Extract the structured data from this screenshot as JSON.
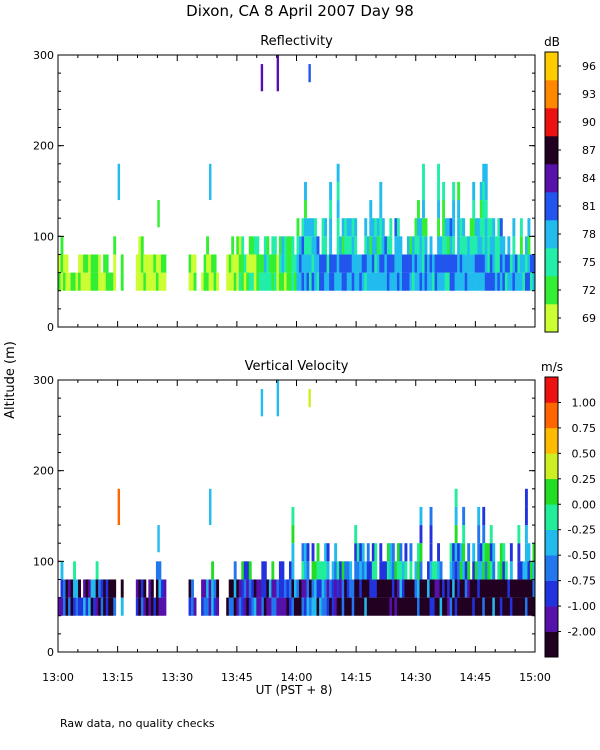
{
  "title": "Dixon, CA   8 April 2007   Day   98",
  "ylabel": "Altitude  (m)",
  "xlabel": "UT   (PST + 8)",
  "footnote": "Raw data, no quality checks",
  "colors": {
    "reflectivity": [
      "#ccff33",
      "#33ee33",
      "#22eeaa",
      "#22bbee",
      "#2255ee",
      "#5511aa",
      "#220022",
      "#ee1111",
      "#ff8800",
      "#ffcc00"
    ],
    "velocity": [
      "#220022",
      "#5511aa",
      "#2233dd",
      "#2277ee",
      "#22bbee",
      "#22ee99",
      "#22dd22",
      "#ccee22",
      "#ffbb00",
      "#ff6600",
      "#ee1111"
    ]
  },
  "chart_data": [
    {
      "type": "heatmap",
      "title": "Reflectivity",
      "ylabel": "Altitude  (m)",
      "xlabel": "UT   (PST + 8)",
      "x_range_minutes_after_1300": [
        0,
        120
      ],
      "ylim": [
        0,
        300
      ],
      "xticks": [
        "13:00",
        "13:15",
        "13:30",
        "13:45",
        "14:00",
        "14:15",
        "14:30",
        "14:45",
        "15:00"
      ],
      "yticks": [
        "0",
        "100",
        "200",
        "300"
      ],
      "colorbar_unit": "dB",
      "colorbar_labels": [
        "69",
        "72",
        "75",
        "78",
        "81",
        "84",
        "87",
        "90",
        "93",
        "96"
      ],
      "echo_summary": {
        "base_altitude_m": 40,
        "top_before_1345_m": 80,
        "top_after_1400_m": 120,
        "isolated_returns_m": [
          [
            15,
            140,
            180
          ],
          [
            25,
            110,
            140
          ],
          [
            38,
            140,
            180
          ],
          [
            51,
            260,
            290
          ],
          [
            55,
            260,
            300
          ],
          [
            63,
            270,
            290
          ]
        ]
      }
    },
    {
      "type": "heatmap",
      "title": "Vertical Velocity",
      "ylabel": "Altitude  (m)",
      "xlabel": "UT   (PST + 8)",
      "x_range_minutes_after_1300": [
        0,
        120
      ],
      "ylim": [
        0,
        300
      ],
      "xticks": [
        "13:00",
        "13:15",
        "13:30",
        "13:45",
        "14:00",
        "14:15",
        "14:30",
        "14:45",
        "15:00"
      ],
      "yticks": [
        "0",
        "100",
        "200",
        "300"
      ],
      "colorbar_unit": "m/s",
      "colorbar_labels": [
        "-2.00",
        "-1.00",
        "-0.75",
        "-0.50",
        "-0.25",
        "0.00",
        "0.25",
        "0.50",
        "0.75",
        "1.00"
      ]
    }
  ]
}
